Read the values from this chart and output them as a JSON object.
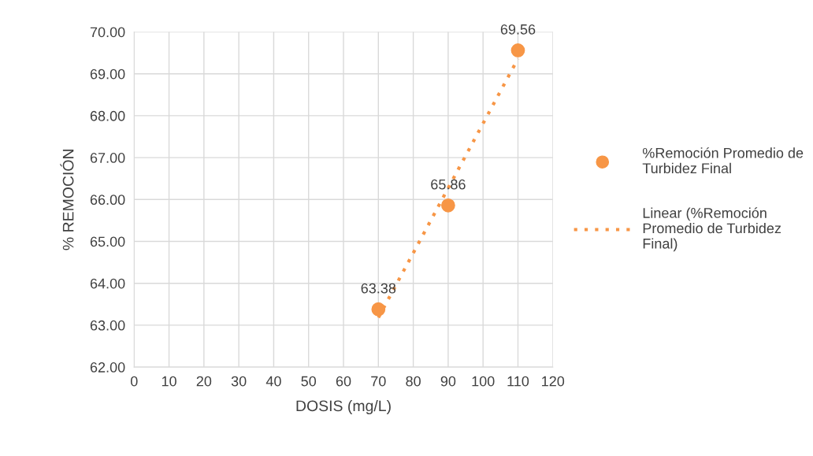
{
  "chart_data": {
    "type": "scatter",
    "xlabel": "DOSIS (mg/L)",
    "ylabel": "% REMOCIÓN",
    "xlim": [
      0,
      120
    ],
    "xticks": [
      0,
      10,
      20,
      30,
      40,
      50,
      60,
      70,
      80,
      90,
      100,
      110,
      120
    ],
    "ylim": [
      62,
      70
    ],
    "yticks": [
      {
        "value": 62,
        "label": "62.00"
      },
      {
        "value": 63,
        "label": "63.00"
      },
      {
        "value": 64,
        "label": "64.00"
      },
      {
        "value": 65,
        "label": "65.00"
      },
      {
        "value": 66,
        "label": "66.00"
      },
      {
        "value": 67,
        "label": "67.00"
      },
      {
        "value": 68,
        "label": "68.00"
      },
      {
        "value": 69,
        "label": "69.00"
      },
      {
        "value": 70,
        "label": "70.00"
      }
    ],
    "grid": true,
    "legend": "right",
    "series": [
      {
        "name": "%Remoción Promedio de Turbidez Final",
        "color": "#f79646",
        "marker": "circle",
        "x": [
          70,
          90,
          110
        ],
        "values": [
          63.38,
          65.86,
          69.56
        ],
        "value_labels": [
          "63.38",
          "65.86",
          "69.56"
        ]
      },
      {
        "name": "Linear (%Remoción Promedio de Turbidez Final)",
        "type": "line",
        "color": "#f79646",
        "line_style": "dotted",
        "x": [
          70,
          110
        ],
        "values": [
          63.18,
          69.36
        ]
      }
    ]
  }
}
